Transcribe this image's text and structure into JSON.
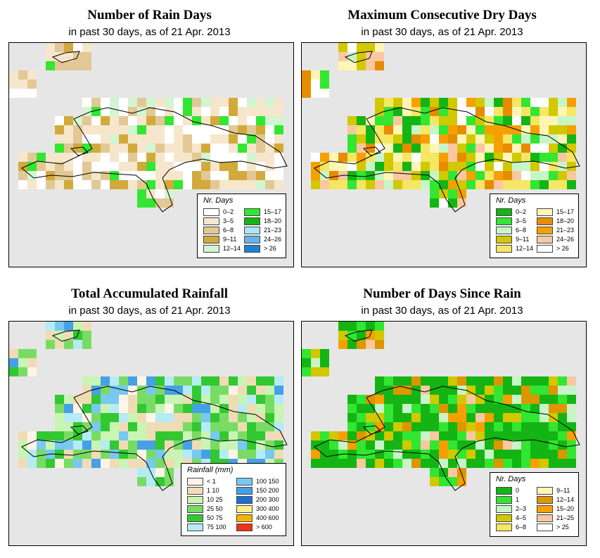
{
  "panels": [
    {
      "id": "rain-days",
      "title": "Number of Rain Days",
      "subtitle": "in past 30 days, as of  21 Apr. 2013",
      "legend": {
        "title": "Nr. Days",
        "columns": [
          [
            {
              "label": "0–2",
              "color": "#ffffff"
            },
            {
              "label": "3–5",
              "color": "#f5e6cc"
            },
            {
              "label": "6–8",
              "color": "#e2c894"
            },
            {
              "label": "9–11",
              "color": "#d2aa3c"
            },
            {
              "label": "12–14",
              "color": "#d2f5d2"
            }
          ],
          [
            {
              "label": "15–17",
              "color": "#32e632"
            },
            {
              "label": "18–20",
              "color": "#14b414"
            },
            {
              "label": "21–23",
              "color": "#aae6f5"
            },
            {
              "label": "24–26",
              "color": "#64b4eb"
            },
            {
              "label": "> 26",
              "color": "#1e82d2"
            }
          ]
        ]
      }
    },
    {
      "id": "dry-days",
      "title": "Maximum Consecutive Dry Days",
      "subtitle": "in past 30 days, as of  21 Apr. 2013",
      "legend": {
        "title": "Nr. Days",
        "columns": [
          [
            {
              "label": "0–2",
              "color": "#14b414"
            },
            {
              "label": "3–5",
              "color": "#32e632"
            },
            {
              "label": "6–8",
              "color": "#c8f5c8"
            },
            {
              "label": "9–11",
              "color": "#d2c800"
            },
            {
              "label": "12–14",
              "color": "#f5e664"
            }
          ],
          [
            {
              "label": "15–17",
              "color": "#fff5b4"
            },
            {
              "label": "18–20",
              "color": "#e68c00"
            },
            {
              "label": "21–23",
              "color": "#f5a000"
            },
            {
              "label": "24–26",
              "color": "#fac8a0"
            },
            {
              "label": "> 26",
              "color": "#ffffff"
            }
          ]
        ]
      }
    },
    {
      "id": "rainfall",
      "title": "Total Accumulated Rainfall",
      "subtitle": "in past 30 days, as of  21 Apr. 2013",
      "legend": {
        "title": "Rainfall (mm)",
        "columns": [
          [
            {
              "label": "< 1",
              "color": "#fff5e6"
            },
            {
              "label": "1    10",
              "color": "#f0dcb4"
            },
            {
              "label": "10    25",
              "color": "#c8f5b4"
            },
            {
              "label": "25    50",
              "color": "#78dc64"
            },
            {
              "label": "50    75",
              "color": "#32c832"
            },
            {
              "label": "75  100",
              "color": "#b4ebf5"
            }
          ],
          [
            {
              "label": "100  150",
              "color": "#78c8f0"
            },
            {
              "label": "150  200",
              "color": "#46a0e6"
            },
            {
              "label": "200  300",
              "color": "#1e6ed2"
            },
            {
              "label": "300  400",
              "color": "#fff08c"
            },
            {
              "label": "400  600",
              "color": "#f5b400"
            },
            {
              "label": "> 600",
              "color": "#f03214"
            }
          ]
        ]
      }
    },
    {
      "id": "since-rain",
      "title": "Number of Days Since Rain",
      "subtitle": "in past 30 days, as of  21 Apr. 2013",
      "legend": {
        "title": "Nr. Days",
        "columns": [
          [
            {
              "label": "0",
              "color": "#14b414"
            },
            {
              "label": "1",
              "color": "#32e632"
            },
            {
              "label": "2–3",
              "color": "#c8f5c8"
            },
            {
              "label": "4–5",
              "color": "#d2c800"
            },
            {
              "label": "6–8",
              "color": "#f5e664"
            }
          ],
          [
            {
              "label": "9–11",
              "color": "#fff5b4"
            },
            {
              "label": "12–14",
              "color": "#dc9600"
            },
            {
              "label": "15–20",
              "color": "#f5a000"
            },
            {
              "label": "21–25",
              "color": "#fac8a0"
            },
            {
              "label": "> 25",
              "color": "#ffffff"
            }
          ]
        ]
      }
    }
  ]
}
